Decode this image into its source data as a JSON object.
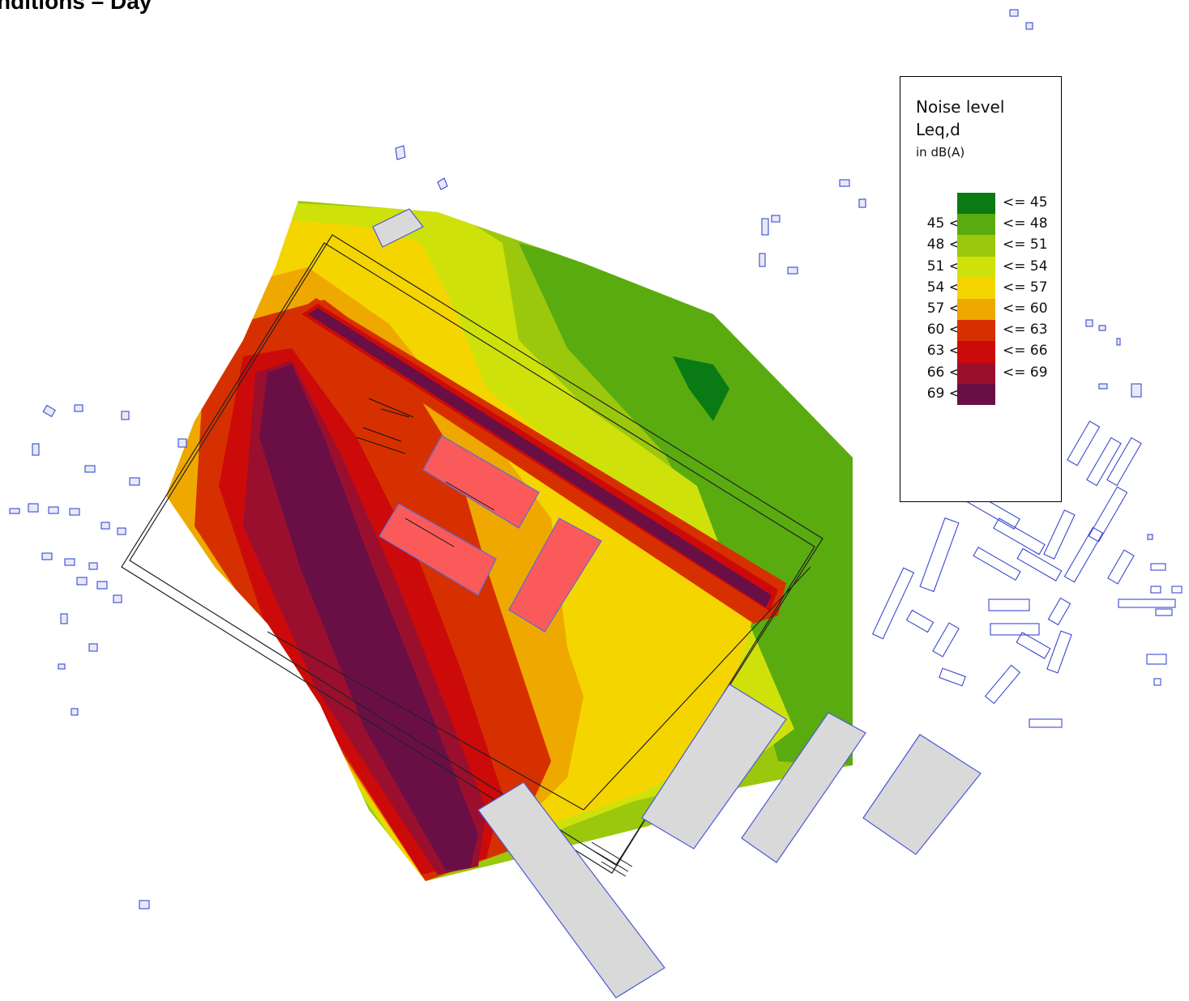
{
  "title": "nditions – Day",
  "legend": {
    "title": "Noise level",
    "metric": "Leq,d",
    "unit": "in dB(A)",
    "bands": [
      {
        "low": "",
        "high": "<= 45",
        "color": "#0a7a14"
      },
      {
        "low": "45 <",
        "high": "<= 48",
        "color": "#5aab10"
      },
      {
        "low": "48 <",
        "high": "<= 51",
        "color": "#9bc80c"
      },
      {
        "low": "51 <",
        "high": "<= 54",
        "color": "#cfe10a"
      },
      {
        "low": "54 <",
        "high": "<= 57",
        "color": "#f5d500"
      },
      {
        "low": "57 <",
        "high": "<= 60",
        "color": "#efa800"
      },
      {
        "low": "60 <",
        "high": "<= 63",
        "color": "#d73000"
      },
      {
        "low": "63 <",
        "high": "<= 66",
        "color": "#cc0a0a"
      },
      {
        "low": "66 <",
        "high": "<= 69",
        "color": "#9b0f2e"
      },
      {
        "low": "69 <",
        "high": "",
        "color": "#6a0f45"
      }
    ]
  }
}
